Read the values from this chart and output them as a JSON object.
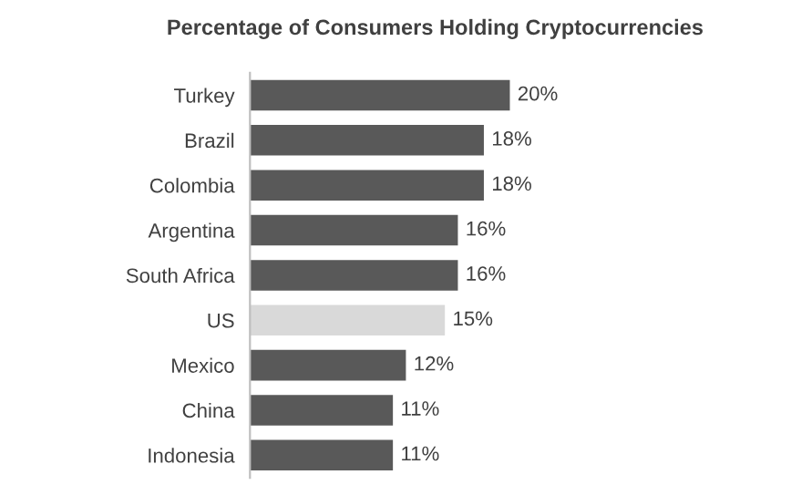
{
  "chart_data": {
    "type": "bar",
    "orientation": "horizontal",
    "title": "Percentage of Consumers Holding Cryptocurrencies",
    "categories": [
      "Turkey",
      "Brazil",
      "Colombia",
      "Argentina",
      "South Africa",
      "US",
      "Mexico",
      "China",
      "Indonesia"
    ],
    "values": [
      20,
      18,
      18,
      16,
      16,
      15,
      12,
      11,
      11
    ],
    "value_labels": [
      "20%",
      "18%",
      "18%",
      "16%",
      "16%",
      "15%",
      "12%",
      "11%",
      "11%"
    ],
    "colors": [
      "#595959",
      "#595959",
      "#595959",
      "#595959",
      "#595959",
      "#d9d9d9",
      "#595959",
      "#595959",
      "#595959"
    ],
    "grid": false,
    "legend": false
  }
}
